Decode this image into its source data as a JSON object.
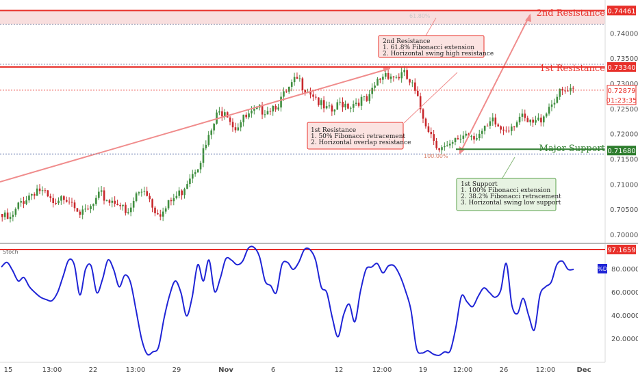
{
  "colors": {
    "resistance": "#e8302a",
    "resistance_zone": "#f6d3d3",
    "support": "#2e7d2e",
    "support_box": "#e7f3e2",
    "resistance_box": "#fbe3e1",
    "candle_up": "#3f8e3f",
    "candle_down": "#c8282c",
    "stoch_line": "#1f24d6",
    "trendline": "#f08c8c",
    "price_tag": "#e8302a",
    "stoch_tag": "#1f24d6"
  },
  "levels": {
    "second_resistance": {
      "label": "2nd Resistance",
      "price_label": "0.74461"
    },
    "first_resistance": {
      "label": "1st Resistance",
      "price_label": "0.73340"
    },
    "major_support": {
      "label": "Major Support",
      "price_label": "0.71680"
    },
    "current_price": "0.72879",
    "countdown": "01:23:35",
    "fib_top_label": "61.80%",
    "fib_bottom_label": "100.00%"
  },
  "annotations": {
    "second_resistance_box": [
      "2nd Resistance",
      "1. 61.8% Fibonacci extension",
      "2. Horizontal swing high resistance"
    ],
    "first_resistance_box": [
      "1st Resistance",
      "1. 50% Fibonacci retracement",
      "2. Horizontal overlap resistance"
    ],
    "first_support_box": [
      "1st Support",
      "1. 100% Fibonacci extension",
      "2. 38.2% Fibonacci retracement",
      "3. Horizontal swing low support"
    ]
  },
  "stoch": {
    "title": "Stoch",
    "level_label": "97.1659",
    "series_tag": "%D"
  },
  "chart_data": [
    {
      "type": "candlestick",
      "title": "",
      "y_ticks": [
        "0.74000",
        "0.73500",
        "0.73000",
        "0.72500",
        "0.72000",
        "0.71500",
        "0.71000",
        "0.70500",
        "0.70000"
      ],
      "ylim": [
        0.6985,
        0.7467
      ],
      "x_tick_labels": [
        "15",
        "13:00",
        "22",
        "13:00",
        "29",
        "Nov",
        "6",
        "12",
        "12:00",
        "19",
        "12:00",
        "26",
        "12:00",
        "Dec"
      ],
      "horizontal_levels": [
        0.74461,
        0.7334,
        0.7168
      ],
      "close_path": [
        0.7042,
        0.7035,
        0.707,
        0.7085,
        0.71,
        0.708,
        0.706,
        0.7085,
        0.7075,
        0.7045,
        0.706,
        0.7085,
        0.7075,
        0.7075,
        0.704,
        0.7085,
        0.71,
        0.706,
        0.705,
        0.7075,
        0.709,
        0.7125,
        0.715,
        0.719,
        0.724,
        0.726,
        0.722,
        0.7235,
        0.7245,
        0.7255,
        0.726,
        0.727,
        0.729,
        0.7315,
        0.73,
        0.7285,
        0.7255,
        0.725,
        0.727,
        0.7265,
        0.7275,
        0.727,
        0.731,
        0.733,
        0.732,
        0.7325,
        0.73,
        0.725,
        0.721,
        0.718,
        0.7175,
        0.7195,
        0.721,
        0.7205,
        0.721,
        0.723,
        0.7215,
        0.7225,
        0.724,
        0.7225,
        0.723,
        0.7255,
        0.728,
        0.729,
        0.7288
      ]
    },
    {
      "type": "line",
      "title": "Stoch",
      "series": [
        {
          "name": "%D",
          "values": [
            82,
            86,
            79,
            70,
            73,
            65,
            60,
            56,
            54,
            53,
            60,
            74,
            88,
            84,
            58,
            80,
            83,
            60,
            71,
            88,
            80,
            65,
            75,
            69,
            45,
            20,
            7,
            9,
            13,
            38,
            58,
            70,
            60,
            40,
            56,
            84,
            70,
            88,
            61,
            72,
            89,
            88,
            84,
            87,
            98,
            99,
            91,
            70,
            66,
            60,
            84,
            86,
            80,
            86,
            97,
            97,
            88,
            65,
            60,
            38,
            22,
            41,
            50,
            35,
            61,
            80,
            82,
            85,
            77,
            83,
            83,
            75,
            62,
            45,
            12,
            8,
            10,
            7,
            6,
            9,
            10,
            30,
            57,
            52,
            48,
            57,
            64,
            60,
            56,
            62,
            85,
            49,
            42,
            55,
            40,
            28,
            58,
            65,
            69,
            84,
            87,
            80,
            80
          ]
        }
      ],
      "y_ticks": [
        "80.0000",
        "60.0000",
        "40.0000",
        "20.0000"
      ],
      "ylim": [
        0,
        100
      ],
      "horizontal_levels": [
        97.1659
      ]
    }
  ]
}
